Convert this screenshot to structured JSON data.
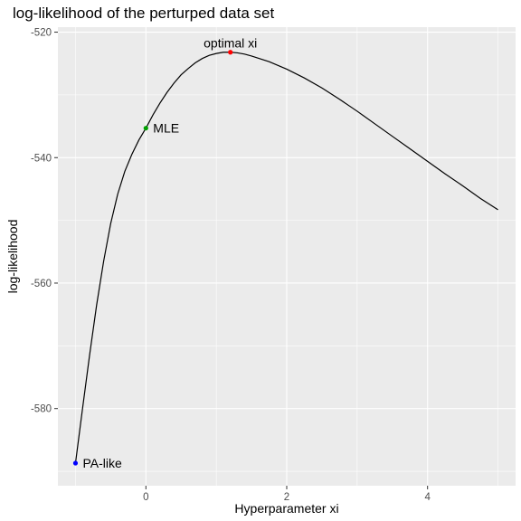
{
  "chart_data": {
    "type": "line",
    "title": "log-likelihood of the perturped data set",
    "xlabel": "Hyperparameter xi",
    "ylabel": "log-likelihood",
    "xlim": [
      -1.25,
      5.25
    ],
    "ylim": [
      -592.3,
      -519.2
    ],
    "x_ticks": [
      0,
      2,
      4
    ],
    "y_ticks": [
      -580,
      -560,
      -540,
      -520
    ],
    "grid": true,
    "series": [
      {
        "x": [
          -1.0,
          -0.9,
          -0.8,
          -0.7,
          -0.6,
          -0.5,
          -0.4,
          -0.3,
          -0.2,
          -0.1,
          0.0,
          0.1,
          0.2,
          0.3,
          0.4,
          0.5,
          0.6,
          0.7,
          0.8,
          0.9,
          1.0,
          1.1,
          1.2,
          1.3,
          1.4,
          1.5,
          1.75,
          2.0,
          2.25,
          2.5,
          2.75,
          3.0,
          3.25,
          3.5,
          3.75,
          4.0,
          4.25,
          4.5,
          4.75,
          5.0
        ],
        "y": [
          -588.7,
          -580.0,
          -571.5,
          -563.5,
          -556.5,
          -550.5,
          -545.8,
          -542.2,
          -539.5,
          -537.2,
          -535.3,
          -533.2,
          -531.3,
          -529.6,
          -528.1,
          -526.8,
          -525.8,
          -524.9,
          -524.2,
          -523.7,
          -523.4,
          -523.2,
          -523.2,
          -523.3,
          -523.5,
          -523.8,
          -524.7,
          -525.9,
          -527.3,
          -528.9,
          -530.7,
          -532.6,
          -534.6,
          -536.6,
          -538.6,
          -540.6,
          -542.6,
          -544.5,
          -546.5,
          -548.3
        ],
        "color": "#000000"
      }
    ],
    "points": [
      {
        "label": "PA-like",
        "x": -1.0,
        "y": -588.7,
        "color": "#0000ff"
      },
      {
        "label": "MLE",
        "x": 0.0,
        "y": -535.3,
        "color": "#00a000"
      },
      {
        "label": "optimal xi",
        "x": 1.2,
        "y": -523.2,
        "color": "#ff0000"
      }
    ],
    "colors": {
      "panel": "#ebebeb",
      "grid": "#ffffff"
    }
  }
}
